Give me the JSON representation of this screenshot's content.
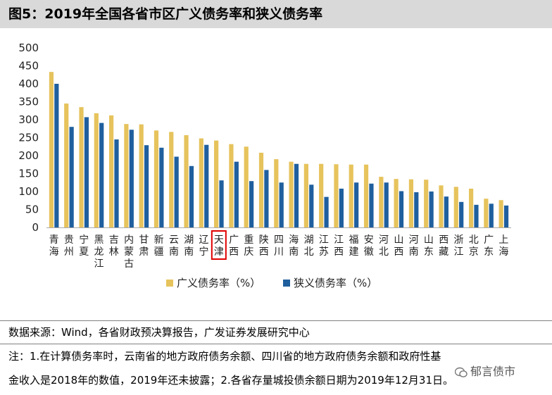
{
  "title": "图5：2019年全国各省市区广义债务率和狭义债务率",
  "source": "数据来源：Wind，各省财政预决算报告，广发证券发展研究中心",
  "note_line1": "注：1.在计算债务率时，云南省的地方政府债务余额、四川省的地方政府债务余额和政府性基",
  "note_line2": "金收入是2018年的数值，2019年还未披露；2.各省存量城投债余额日期为2019年12月31日。",
  "watermark": "郁言债市",
  "colors": {
    "broad": "#e6c35c",
    "narrow": "#1f5f9e",
    "highlight": "#e00000"
  },
  "chart_data": {
    "type": "bar",
    "categories": [
      "青海",
      "贵州",
      "宁夏",
      "黑龙江",
      "吉林",
      "内蒙古",
      "甘肃",
      "新疆",
      "云南",
      "湖南",
      "辽宁",
      "天津",
      "广西",
      "重庆",
      "陕西",
      "四川",
      "海南",
      "湖北",
      "江苏",
      "江西",
      "福建",
      "安徽",
      "河北",
      "山西",
      "河南",
      "山东",
      "西藏",
      "浙江",
      "北京",
      "广东",
      "上海"
    ],
    "series": [
      {
        "name": "广义债务率（%）",
        "values": [
          433,
          345,
          335,
          318,
          312,
          288,
          287,
          270,
          266,
          257,
          248,
          242,
          232,
          225,
          208,
          190,
          183,
          177,
          177,
          176,
          175,
          175,
          141,
          135,
          134,
          133,
          117,
          113,
          108,
          80,
          76
        ]
      },
      {
        "name": "狭义债务率（%）",
        "values": [
          400,
          280,
          307,
          291,
          245,
          272,
          229,
          222,
          197,
          171,
          230,
          131,
          183,
          129,
          160,
          125,
          177,
          119,
          85,
          108,
          125,
          122,
          125,
          101,
          98,
          100,
          86,
          71,
          63,
          66,
          61
        ]
      }
    ],
    "highlight_category": "天津",
    "yticks": [
      0,
      50,
      100,
      150,
      200,
      250,
      300,
      350,
      400,
      450,
      500
    ],
    "ylim": [
      0,
      500
    ],
    "legend_position": "bottom",
    "grid": false
  }
}
